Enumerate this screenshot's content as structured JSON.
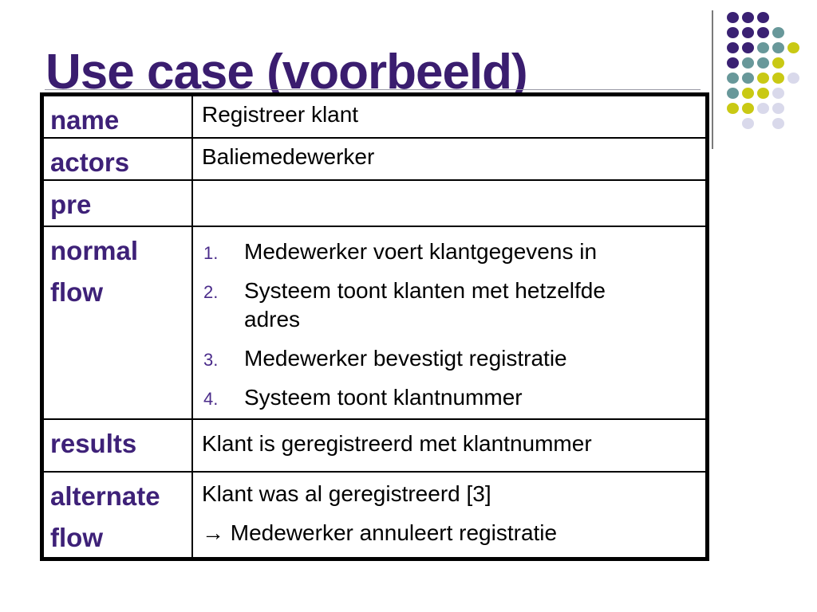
{
  "slide": {
    "title": "Use case (voorbeeld)",
    "colors": {
      "title": "#3A1D6F",
      "label": "#3E2178",
      "step_number": "#4A2B8A",
      "body": "#000000",
      "table_border": "#000000"
    }
  },
  "table": {
    "rows": [
      {
        "label": "name",
        "value": "Registreer klant"
      },
      {
        "label": "actors",
        "value": "Baliemedewerker"
      },
      {
        "label": "pre",
        "value": ""
      },
      {
        "label": "normal flow",
        "steps": [
          {
            "num": "1.",
            "text": "Medewerker voert klantgegevens in"
          },
          {
            "num": "2.",
            "text": "Systeem toont klanten met hetzelfde adres"
          },
          {
            "num": "3.",
            "text": "Medewerker bevestigt registratie"
          },
          {
            "num": "4.",
            "text": "Systeem toont klantnummer"
          }
        ]
      },
      {
        "label": "results",
        "value": "Klant is geregistreerd met klantnummer"
      },
      {
        "label": "alternate flow",
        "lines": [
          "Klant was al geregistreerd [3]",
          "→ Medewerker annuleert registratie"
        ]
      }
    ]
  },
  "decor": {
    "dot_colors": {
      "purple": "#3A2173",
      "teal": "#68989A",
      "yellow": "#C9C914",
      "lavender": "#D9D9EB"
    },
    "dots": [
      {
        "r": 1,
        "c": 1,
        "k": "purple"
      },
      {
        "r": 1,
        "c": 2,
        "k": "purple"
      },
      {
        "r": 1,
        "c": 3,
        "k": "purple"
      },
      {
        "r": 2,
        "c": 1,
        "k": "purple"
      },
      {
        "r": 2,
        "c": 2,
        "k": "purple"
      },
      {
        "r": 2,
        "c": 3,
        "k": "purple"
      },
      {
        "r": 2,
        "c": 4,
        "k": "teal"
      },
      {
        "r": 3,
        "c": 1,
        "k": "purple"
      },
      {
        "r": 3,
        "c": 2,
        "k": "purple"
      },
      {
        "r": 3,
        "c": 3,
        "k": "teal"
      },
      {
        "r": 3,
        "c": 4,
        "k": "teal"
      },
      {
        "r": 3,
        "c": 5,
        "k": "yellow"
      },
      {
        "r": 4,
        "c": 1,
        "k": "purple"
      },
      {
        "r": 4,
        "c": 2,
        "k": "teal"
      },
      {
        "r": 4,
        "c": 3,
        "k": "teal"
      },
      {
        "r": 4,
        "c": 4,
        "k": "yellow"
      },
      {
        "r": 5,
        "c": 1,
        "k": "teal"
      },
      {
        "r": 5,
        "c": 2,
        "k": "teal"
      },
      {
        "r": 5,
        "c": 3,
        "k": "yellow"
      },
      {
        "r": 5,
        "c": 4,
        "k": "yellow"
      },
      {
        "r": 5,
        "c": 5,
        "k": "lavender"
      },
      {
        "r": 6,
        "c": 1,
        "k": "teal"
      },
      {
        "r": 6,
        "c": 2,
        "k": "yellow"
      },
      {
        "r": 6,
        "c": 3,
        "k": "yellow"
      },
      {
        "r": 6,
        "c": 4,
        "k": "lavender"
      },
      {
        "r": 7,
        "c": 1,
        "k": "yellow"
      },
      {
        "r": 7,
        "c": 2,
        "k": "yellow"
      },
      {
        "r": 7,
        "c": 3,
        "k": "lavender"
      },
      {
        "r": 7,
        "c": 4,
        "k": "lavender"
      },
      {
        "r": 8,
        "c": 2,
        "k": "lavender"
      },
      {
        "r": 8,
        "c": 4,
        "k": "lavender"
      }
    ]
  }
}
